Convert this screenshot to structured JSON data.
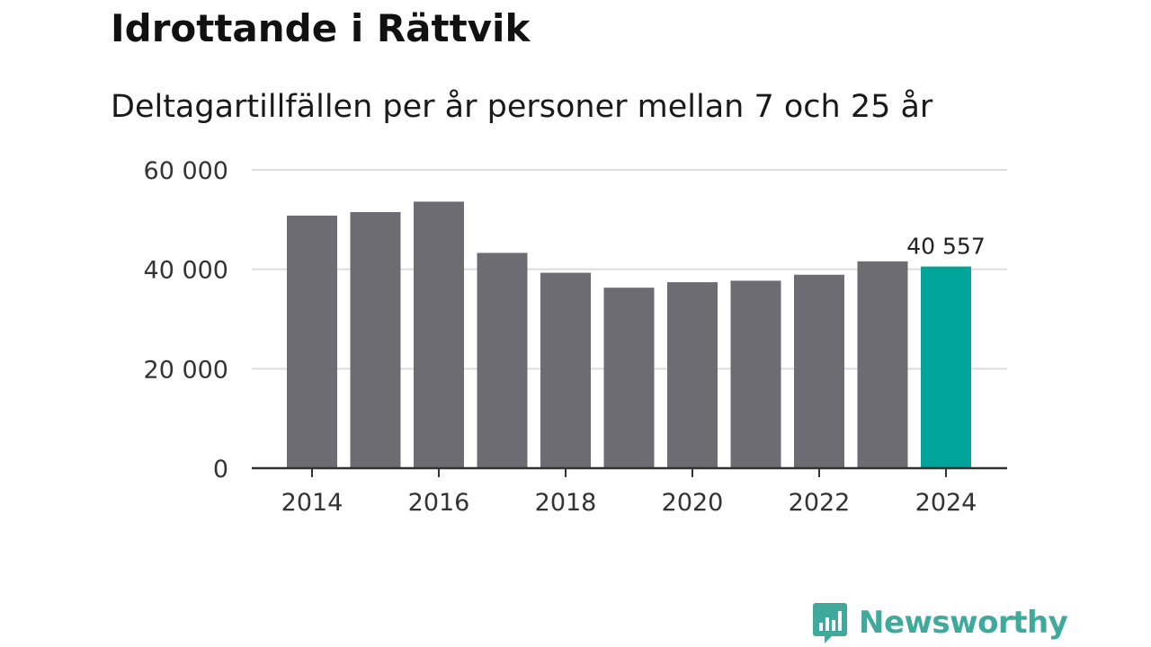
{
  "title": "Idrottande i Rättvik",
  "subtitle": "Deltagartillfällen per år personer mellan 7 och 25 år",
  "brand": {
    "name": "Newsworthy",
    "color": "#3fa99b",
    "icon": "chart-speech-bubble-icon"
  },
  "colors": {
    "bar": "#6d6c73",
    "highlight": "#00a499",
    "grid": "#dddddd",
    "axis": "#333333"
  },
  "chart_data": {
    "type": "bar",
    "title": "Idrottande i Rättvik",
    "subtitle": "Deltagartillfällen per år personer mellan 7 och 25 år",
    "categories": [
      "2014",
      "2015",
      "2016",
      "2017",
      "2018",
      "2019",
      "2020",
      "2021",
      "2022",
      "2023",
      "2024"
    ],
    "values": [
      50800,
      51500,
      53600,
      43300,
      39300,
      36300,
      37400,
      37700,
      38900,
      41600,
      40557
    ],
    "x_tick_labels": [
      "2014",
      "",
      "2016",
      "",
      "2018",
      "",
      "2020",
      "",
      "2022",
      "",
      "2024"
    ],
    "y_ticks": [
      0,
      20000,
      40000,
      60000
    ],
    "y_tick_labels": [
      "0",
      "20 000",
      "40 000",
      "60 000"
    ],
    "ylim": [
      0,
      60000
    ],
    "grid": true,
    "highlight_index": 10,
    "data_labels": [
      {
        "index": 10,
        "text": "40 557"
      }
    ],
    "xlabel": "",
    "ylabel": ""
  }
}
